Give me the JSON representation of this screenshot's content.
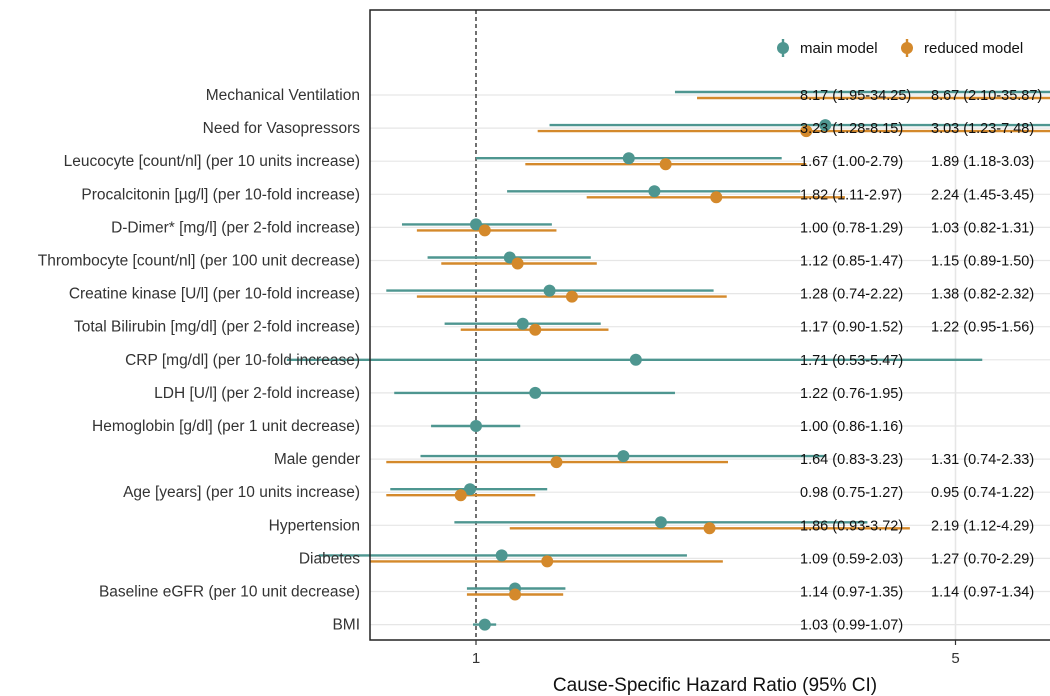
{
  "chart_data": {
    "type": "forest",
    "xlabel": "Cause-Specific Hazard Ratio (95% CI)",
    "x_scale": "log",
    "xlim": [
      0.36,
      42
    ],
    "x_ticks": [
      1,
      5,
      10,
      30
    ],
    "reference_line": 1,
    "legend_position": "top-right",
    "series": [
      {
        "name": "main model",
        "color": "#4e9690"
      },
      {
        "name": "reduced model",
        "color": "#d4892b"
      }
    ],
    "rows": [
      {
        "label": "Mechanical Ventilation",
        "main": {
          "hr": 8.17,
          "lo": 1.95,
          "hi": 34.25,
          "text": "8.17 (1.95-34.25)"
        },
        "reduced": {
          "hr": 8.67,
          "lo": 2.1,
          "hi": 35.87,
          "text": "8.67 (2.10-35.87)"
        }
      },
      {
        "label": "Need for Vasopressors",
        "main": {
          "hr": 3.23,
          "lo": 1.28,
          "hi": 8.15,
          "text": "3.23 (1.28-8.15)"
        },
        "reduced": {
          "hr": 3.03,
          "lo": 1.23,
          "hi": 7.48,
          "text": "3.03 (1.23-7.48)"
        }
      },
      {
        "label": "Leucocyte [count/nl] (per 10 units increase)",
        "main": {
          "hr": 1.67,
          "lo": 1.0,
          "hi": 2.79,
          "text": "1.67 (1.00-2.79)"
        },
        "reduced": {
          "hr": 1.89,
          "lo": 1.18,
          "hi": 3.03,
          "text": "1.89 (1.18-3.03)"
        }
      },
      {
        "label": "Procalcitonin [µg/l] (per 10-fold increase)",
        "main": {
          "hr": 1.82,
          "lo": 1.11,
          "hi": 2.97,
          "text": "1.82 (1.11-2.97)"
        },
        "reduced": {
          "hr": 2.24,
          "lo": 1.45,
          "hi": 3.45,
          "text": "2.24 (1.45-3.45)"
        }
      },
      {
        "label": "D-Dimer* [mg/l] (per 2-fold increase)",
        "main": {
          "hr": 1.0,
          "lo": 0.78,
          "hi": 1.29,
          "text": "1.00 (0.78-1.29)"
        },
        "reduced": {
          "hr": 1.03,
          "lo": 0.82,
          "hi": 1.31,
          "text": "1.03 (0.82-1.31)"
        }
      },
      {
        "label": "Thrombocyte [count/nl] (per 100 unit decrease)",
        "main": {
          "hr": 1.12,
          "lo": 0.85,
          "hi": 1.47,
          "text": "1.12 (0.85-1.47)"
        },
        "reduced": {
          "hr": 1.15,
          "lo": 0.89,
          "hi": 1.5,
          "text": "1.15 (0.89-1.50)"
        }
      },
      {
        "label": "Creatine kinase [U/l] (per 10-fold increase)",
        "main": {
          "hr": 1.28,
          "lo": 0.74,
          "hi": 2.22,
          "text": "1.28 (0.74-2.22)"
        },
        "reduced": {
          "hr": 1.38,
          "lo": 0.82,
          "hi": 2.32,
          "text": "1.38 (0.82-2.32)"
        }
      },
      {
        "label": "Total Bilirubin [mg/dl] (per 2-fold increase)",
        "main": {
          "hr": 1.17,
          "lo": 0.9,
          "hi": 1.52,
          "text": "1.17 (0.90-1.52)"
        },
        "reduced": {
          "hr": 1.22,
          "lo": 0.95,
          "hi": 1.56,
          "text": "1.22 (0.95-1.56)"
        }
      },
      {
        "label": "CRP [mg/dl] (per 10-fold increase)",
        "main": {
          "hr": 1.71,
          "lo": 0.53,
          "hi": 5.47,
          "text": "1.71 (0.53-5.47)"
        },
        "reduced": null
      },
      {
        "label": "LDH [U/l] (per 2-fold increase)",
        "main": {
          "hr": 1.22,
          "lo": 0.76,
          "hi": 1.95,
          "text": "1.22 (0.76-1.95)"
        },
        "reduced": null
      },
      {
        "label": "Hemoglobin [g/dl] (per 1 unit decrease)",
        "main": {
          "hr": 1.0,
          "lo": 0.86,
          "hi": 1.16,
          "text": "1.00 (0.86-1.16)"
        },
        "reduced": null
      },
      {
        "label": "Male gender",
        "main": {
          "hr": 1.64,
          "lo": 0.83,
          "hi": 3.23,
          "text": "1.64 (0.83-3.23)"
        },
        "reduced": {
          "hr": 1.31,
          "lo": 0.74,
          "hi": 2.33,
          "text": "1.31 (0.74-2.33)"
        }
      },
      {
        "label": "Age [years] (per 10 units increase)",
        "main": {
          "hr": 0.98,
          "lo": 0.75,
          "hi": 1.27,
          "text": "0.98 (0.75-1.27)"
        },
        "reduced": {
          "hr": 0.95,
          "lo": 0.74,
          "hi": 1.22,
          "text": "0.95 (0.74-1.22)"
        }
      },
      {
        "label": "Hypertension",
        "main": {
          "hr": 1.86,
          "lo": 0.93,
          "hi": 3.72,
          "text": "1.86 (0.93-3.72)"
        },
        "reduced": {
          "hr": 2.19,
          "lo": 1.12,
          "hi": 4.29,
          "text": "2.19 (1.12-4.29)"
        }
      },
      {
        "label": "Diabetes",
        "main": {
          "hr": 1.09,
          "lo": 0.59,
          "hi": 2.03,
          "text": "1.09 (0.59-2.03)"
        },
        "reduced": {
          "hr": 1.27,
          "lo": 0.7,
          "hi": 2.29,
          "text": "1.27 (0.70-2.29)"
        }
      },
      {
        "label": "Baseline eGFR (per 10 unit decrease)",
        "main": {
          "hr": 1.14,
          "lo": 0.97,
          "hi": 1.35,
          "text": "1.14 (0.97-1.35)"
        },
        "reduced": {
          "hr": 1.14,
          "lo": 0.97,
          "hi": 1.34,
          "text": "1.14 (0.97-1.34)"
        }
      },
      {
        "label": "BMI",
        "main": {
          "hr": 1.03,
          "lo": 0.99,
          "hi": 1.07,
          "text": "1.03 (0.99-1.07)"
        },
        "reduced": null
      }
    ]
  }
}
